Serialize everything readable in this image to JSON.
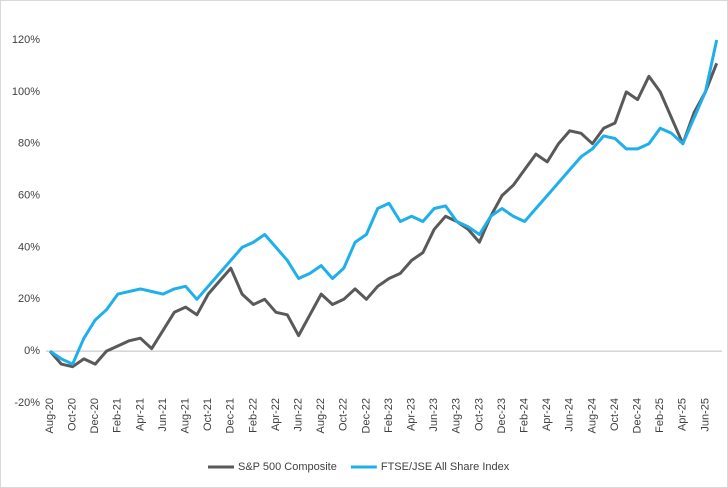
{
  "chart_data": {
    "type": "line",
    "categories": [
      "Aug-20",
      null,
      "Oct-20",
      null,
      "Dec-20",
      null,
      "Feb-21",
      null,
      "Apr-21",
      null,
      "Jun-21",
      null,
      "Aug-21",
      null,
      "Oct-21",
      null,
      "Dec-21",
      null,
      "Feb-22",
      null,
      "Apr-22",
      null,
      "Jun-22",
      null,
      "Aug-22",
      null,
      "Oct-22",
      null,
      "Dec-22",
      null,
      "Feb-23",
      null,
      "Apr-23",
      null,
      "Jun-23",
      null,
      "Aug-23",
      null,
      "Oct-23",
      null,
      "Dec-23",
      null,
      "Feb-24",
      null,
      "Apr-24",
      null,
      "Jun-24",
      null,
      "Aug-24",
      null,
      "Oct-24",
      null,
      "Dec-24",
      null,
      "Feb-25",
      null,
      "Apr-25",
      null,
      "Jun-25",
      null
    ],
    "series": [
      {
        "name": "S&P 500 Composite",
        "color": "#595959",
        "values": [
          0,
          -5,
          -6,
          -3,
          -5,
          0,
          2,
          4,
          5,
          1,
          8,
          15,
          17,
          14,
          22,
          27,
          32,
          22,
          18,
          20,
          15,
          14,
          6,
          14,
          22,
          18,
          20,
          24,
          20,
          25,
          28,
          30,
          35,
          38,
          47,
          52,
          50,
          47,
          42,
          52,
          60,
          64,
          70,
          76,
          73,
          80,
          85,
          84,
          80,
          86,
          88,
          100,
          97,
          106,
          100,
          90,
          80,
          92,
          100,
          111
        ]
      },
      {
        "name": "FTSE/JSE All Share Index",
        "color": "#1fb0ec",
        "values": [
          0,
          -3,
          -5,
          5,
          12,
          16,
          22,
          23,
          24,
          23,
          22,
          24,
          25,
          20,
          25,
          30,
          35,
          40,
          42,
          45,
          40,
          35,
          28,
          30,
          33,
          28,
          32,
          42,
          45,
          55,
          57,
          50,
          52,
          50,
          55,
          56,
          50,
          48,
          45,
          52,
          55,
          52,
          50,
          55,
          60,
          65,
          70,
          75,
          78,
          83,
          82,
          78,
          78,
          80,
          86,
          84,
          80,
          90,
          100,
          120
        ]
      }
    ],
    "ylim": [
      -20,
      120
    ],
    "yticks": [
      {
        "value": -20,
        "label": "-20%"
      },
      {
        "value": 0,
        "label": "0%"
      },
      {
        "value": 20,
        "label": "20%"
      },
      {
        "value": 40,
        "label": "40%"
      },
      {
        "value": 60,
        "label": "60%"
      },
      {
        "value": 80,
        "label": "80%"
      },
      {
        "value": 100,
        "label": "100%"
      },
      {
        "value": 120,
        "label": "120%"
      }
    ],
    "grid": false,
    "legend": "bottom"
  }
}
